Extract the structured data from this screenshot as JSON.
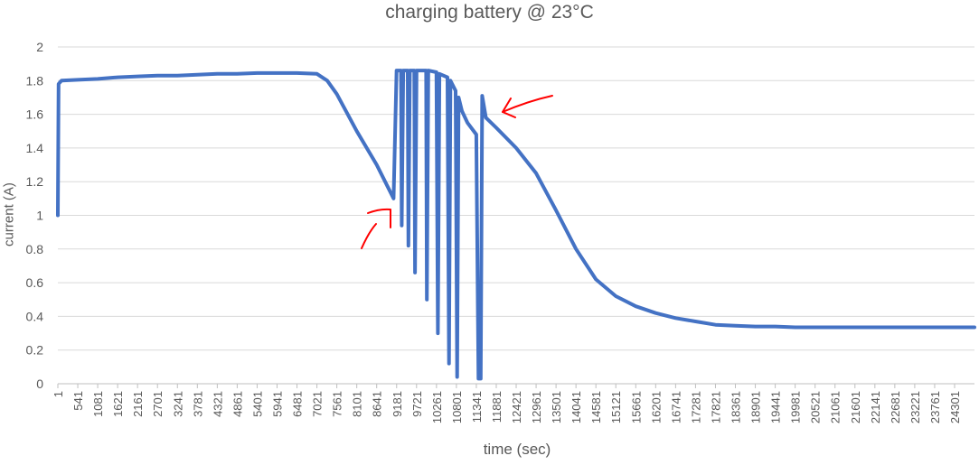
{
  "chart_data": {
    "type": "line",
    "title": "charging battery @ 23°C",
    "xlabel": "time (sec)",
    "ylabel": "current (A)",
    "xlim": [
      1,
      24840
    ],
    "ylim": [
      0,
      2
    ],
    "y_ticks": [
      "0",
      "0.2",
      "0.4",
      "0.6",
      "0.8",
      "1",
      "1.2",
      "1.4",
      "1.6",
      "1.8",
      "2"
    ],
    "x_ticks": [
      "1",
      "541",
      "1081",
      "1621",
      "2161",
      "2701",
      "3241",
      "3781",
      "4321",
      "4861",
      "5401",
      "5941",
      "6481",
      "7021",
      "7561",
      "8101",
      "8641",
      "9181",
      "9721",
      "10261",
      "10801",
      "11341",
      "11881",
      "12421",
      "12961",
      "13501",
      "14041",
      "14581",
      "15121",
      "15661",
      "16201",
      "16741",
      "17281",
      "17821",
      "18361",
      "18901",
      "19441",
      "19981",
      "20521",
      "21061",
      "21601",
      "22141",
      "22681",
      "23221",
      "23761",
      "24301"
    ],
    "grid": "horizontal",
    "line_color": "#4472c4",
    "annotation_color": "#ff0000",
    "series": [
      {
        "values": [
          [
            1,
            1.0
          ],
          [
            20,
            1.78
          ],
          [
            100,
            1.8
          ],
          [
            541,
            1.805
          ],
          [
            1081,
            1.81
          ],
          [
            1621,
            1.82
          ],
          [
            2161,
            1.825
          ],
          [
            2701,
            1.83
          ],
          [
            3241,
            1.83
          ],
          [
            3781,
            1.835
          ],
          [
            4321,
            1.84
          ],
          [
            4861,
            1.84
          ],
          [
            5401,
            1.845
          ],
          [
            5941,
            1.845
          ],
          [
            6481,
            1.845
          ],
          [
            7021,
            1.84
          ],
          [
            7300,
            1.8
          ],
          [
            7561,
            1.72
          ],
          [
            8101,
            1.5
          ],
          [
            8641,
            1.3
          ],
          [
            9100,
            1.1
          ],
          [
            9180,
            1.86
          ],
          [
            9300,
            1.86
          ],
          [
            9320,
            0.94
          ],
          [
            9360,
            1.86
          ],
          [
            9480,
            1.86
          ],
          [
            9500,
            0.82
          ],
          [
            9540,
            1.86
          ],
          [
            9660,
            1.86
          ],
          [
            9680,
            0.66
          ],
          [
            9720,
            1.86
          ],
          [
            9980,
            1.86
          ],
          [
            10000,
            0.5
          ],
          [
            10040,
            1.86
          ],
          [
            10260,
            1.85
          ],
          [
            10300,
            0.3
          ],
          [
            10340,
            1.84
          ],
          [
            10560,
            1.82
          ],
          [
            10600,
            0.12
          ],
          [
            10640,
            1.8
          ],
          [
            10780,
            1.74
          ],
          [
            10820,
            0.04
          ],
          [
            10860,
            1.7
          ],
          [
            10950,
            1.62
          ],
          [
            11100,
            1.55
          ],
          [
            11340,
            1.48
          ],
          [
            11400,
            0.03
          ],
          [
            11460,
            0.03
          ],
          [
            11500,
            1.71
          ],
          [
            11600,
            1.58
          ],
          [
            11881,
            1.52
          ],
          [
            12421,
            1.4
          ],
          [
            12961,
            1.25
          ],
          [
            13501,
            1.03
          ],
          [
            14041,
            0.8
          ],
          [
            14581,
            0.62
          ],
          [
            15121,
            0.52
          ],
          [
            15661,
            0.46
          ],
          [
            16201,
            0.42
          ],
          [
            16741,
            0.39
          ],
          [
            17281,
            0.37
          ],
          [
            17821,
            0.35
          ],
          [
            18361,
            0.345
          ],
          [
            18901,
            0.34
          ],
          [
            19441,
            0.34
          ],
          [
            19981,
            0.335
          ],
          [
            20521,
            0.335
          ],
          [
            21061,
            0.335
          ],
          [
            21601,
            0.335
          ],
          [
            22141,
            0.335
          ],
          [
            22681,
            0.335
          ],
          [
            23221,
            0.335
          ],
          [
            23761,
            0.335
          ],
          [
            24301,
            0.335
          ],
          [
            24840,
            0.335
          ]
        ]
      }
    ]
  }
}
